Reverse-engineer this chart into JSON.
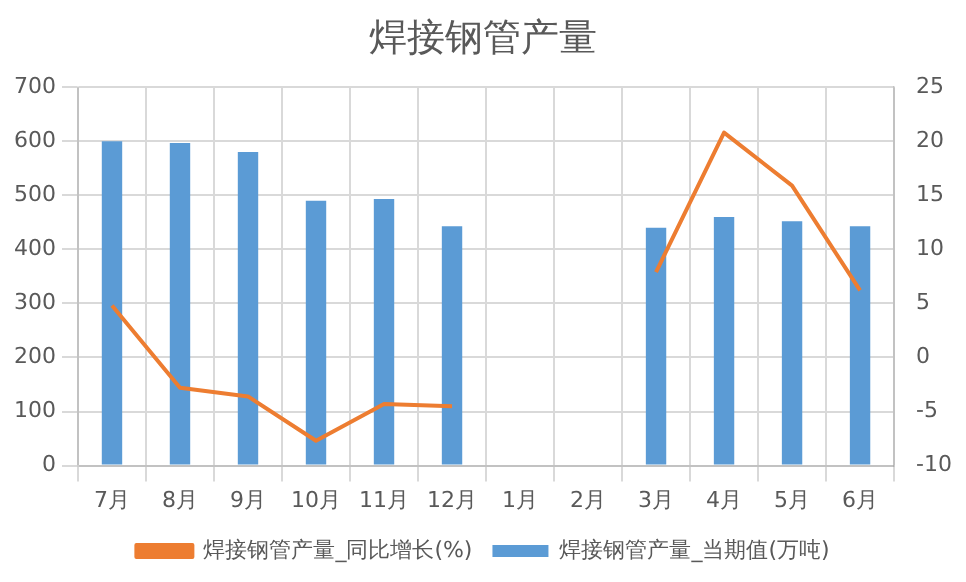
{
  "chart_data": {
    "type": "bar",
    "title": "焊接钢管产量",
    "categories": [
      "7月",
      "8月",
      "9月",
      "10月",
      "11月",
      "12月",
      "1月",
      "2月",
      "3月",
      "4月",
      "5月",
      "6月"
    ],
    "series": [
      {
        "name": "焊接钢管产量_当期值(万吨)",
        "color": "#5b9bd5",
        "values": [
          600,
          597,
          580,
          490,
          493,
          443,
          null,
          null,
          440,
          460,
          452,
          443
        ]
      },
      {
        "name": "焊接钢管产量_同比增长(%)",
        "type": "line",
        "axis": "y2",
        "color": "#ed7d31",
        "values": [
          4.8,
          -2.8,
          -3.6,
          -7.7,
          -4.3,
          -4.5,
          null,
          null,
          7.9,
          20.8,
          15.9,
          6.2
        ]
      }
    ],
    "ylim": [
      0,
      700
    ],
    "yticks": [
      0,
      100,
      200,
      300,
      400,
      500,
      600,
      700
    ],
    "y2lim": [
      -10,
      25
    ],
    "y2ticks": [
      -10,
      -5,
      0,
      5,
      10,
      15,
      20,
      25
    ],
    "grid": true,
    "legend": "bottom",
    "marker": "none"
  }
}
